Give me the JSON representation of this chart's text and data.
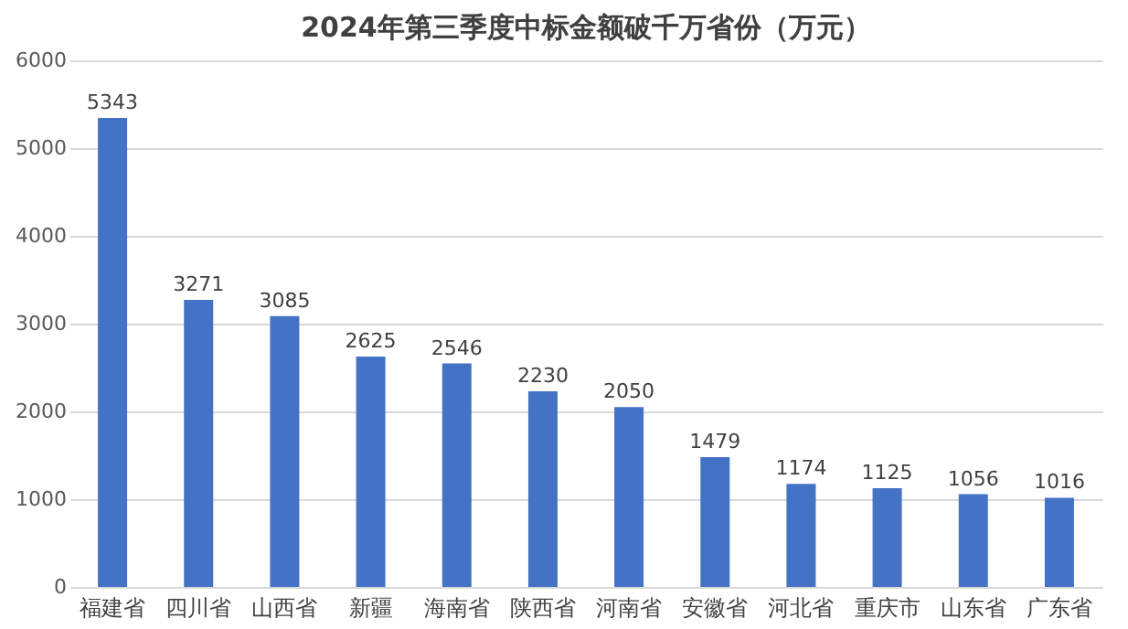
{
  "chart_data": {
    "type": "bar",
    "title": "2024年第三季度中标金额破千万省份（万元）",
    "categories": [
      "福建省",
      "四川省",
      "山西省",
      "新疆",
      "海南省",
      "陕西省",
      "河南省",
      "安徽省",
      "河北省",
      "重庆市",
      "山东省",
      "广东省"
    ],
    "values": [
      5343,
      3271,
      3085,
      2625,
      2546,
      2230,
      2050,
      1479,
      1174,
      1125,
      1056,
      1016
    ],
    "color": "#4472c4",
    "ylim": [
      0,
      6000
    ],
    "yticks": [
      0,
      1000,
      2000,
      3000,
      4000,
      5000,
      6000
    ],
    "grid": "y",
    "data_labels": true
  }
}
